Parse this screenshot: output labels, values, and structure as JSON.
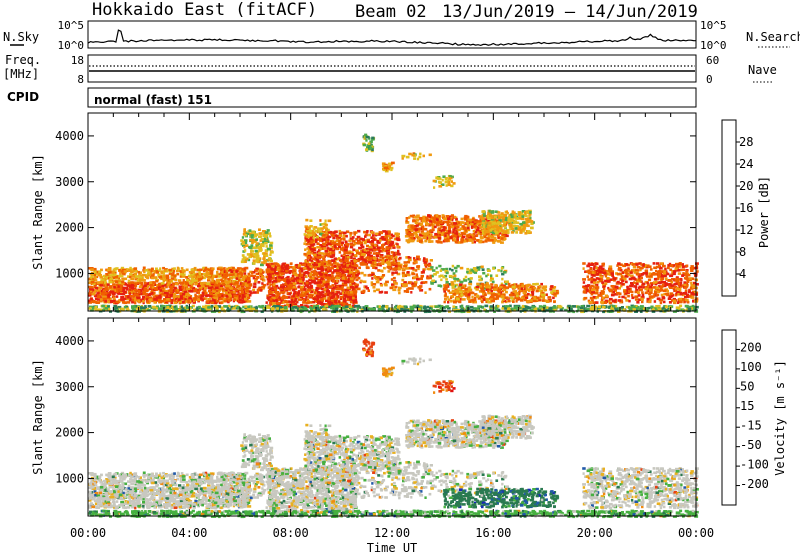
{
  "header": {
    "radar": "Hokkaido East (fitACF)",
    "beam": "Beam 02",
    "dates": "13/Jun/2019 – 14/Jun/2019"
  },
  "aux": {
    "nsky": {
      "label": "N.Sky",
      "ticks": [
        "10^5",
        "10^0"
      ]
    },
    "nsearch": {
      "label": "N.Search",
      "ticks": [
        "10^5",
        "10^0"
      ]
    },
    "freq": {
      "label_top": "Freq.",
      "label_bottom": "[MHz]",
      "ticks": [
        "18",
        "8"
      ]
    },
    "nave": {
      "label": "Nave",
      "ticks": [
        "60",
        "0"
      ]
    },
    "cpid": {
      "label": "CPID",
      "value": "normal (fast) 151"
    }
  },
  "chart_data": [
    {
      "type": "heatmap",
      "name": "power",
      "ylabel": "Slant Range [km]",
      "xlabel": "Time UT",
      "xticks": [
        "00:00",
        "04:00",
        "08:00",
        "12:00",
        "16:00",
        "20:00",
        "00:00"
      ],
      "yticks": [
        1000,
        2000,
        3000,
        4000
      ],
      "ylim": [
        180,
        4500
      ],
      "xlim_hours": [
        0,
        24
      ],
      "colorbar": {
        "label": "Power [dB]",
        "ticks": [
          4,
          8,
          12,
          16,
          20,
          24,
          28
        ],
        "range": [
          0,
          32
        ],
        "colors": [
          "#0a10e6",
          "#2040a8",
          "#2a7a5a",
          "#4caa4c",
          "#e0c020",
          "#f09a10",
          "#f06000",
          "#e62010"
        ]
      }
    },
    {
      "type": "heatmap",
      "name": "velocity",
      "ylabel": "Slant Range [km]",
      "xlabel": "Time UT",
      "xticks": [
        "00:00",
        "04:00",
        "08:00",
        "12:00",
        "16:00",
        "20:00",
        "00:00"
      ],
      "yticks": [
        1000,
        2000,
        3000,
        4000
      ],
      "ylim": [
        180,
        4500
      ],
      "xlim_hours": [
        0,
        24
      ],
      "colorbar": {
        "label": "Velocity [m s⁻¹]",
        "ticks": [
          "200",
          "100",
          "50",
          "15",
          "-15",
          "-50",
          "-100",
          "-200"
        ],
        "colors": [
          "#1828b8",
          "#2058a8",
          "#2a7a50",
          "#46b040",
          "#c8c8c0",
          "#e8b020",
          "#f08a10",
          "#e84010",
          "#e01010"
        ]
      }
    }
  ]
}
